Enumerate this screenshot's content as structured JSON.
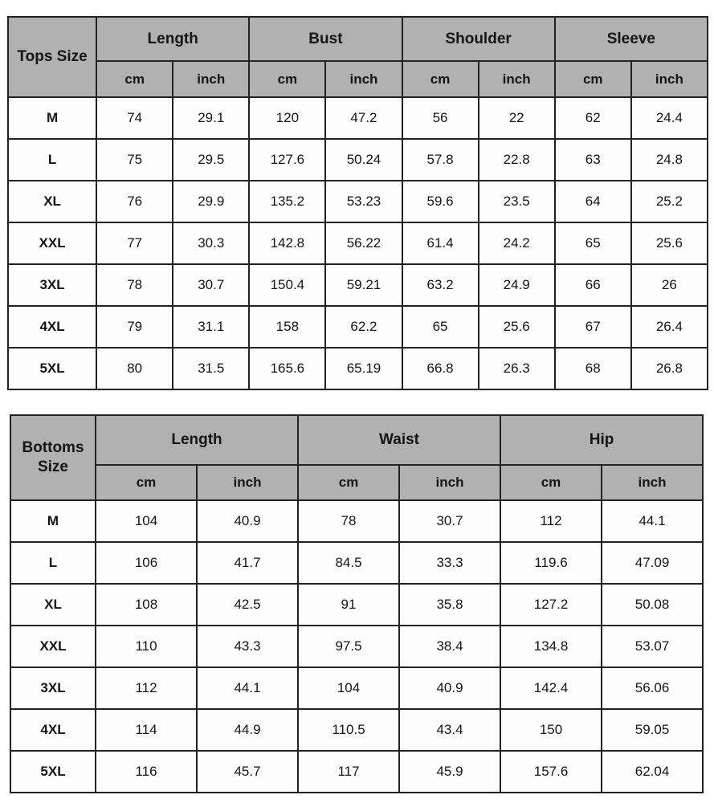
{
  "colors": {
    "header_bg": "#b1b1b1",
    "cell_bg": "#fdfdfd",
    "border": "#222222",
    "text": "#151515"
  },
  "tops": {
    "title": "Tops Size",
    "groups": [
      "Length",
      "Bust",
      "Shoulder",
      "Sleeve"
    ],
    "units": [
      "cm",
      "inch"
    ],
    "rows": [
      {
        "size": "M",
        "values": [
          "74",
          "29.1",
          "120",
          "47.2",
          "56",
          "22",
          "62",
          "24.4"
        ]
      },
      {
        "size": "L",
        "values": [
          "75",
          "29.5",
          "127.6",
          "50.24",
          "57.8",
          "22.8",
          "63",
          "24.8"
        ]
      },
      {
        "size": "XL",
        "values": [
          "76",
          "29.9",
          "135.2",
          "53.23",
          "59.6",
          "23.5",
          "64",
          "25.2"
        ]
      },
      {
        "size": "XXL",
        "values": [
          "77",
          "30.3",
          "142.8",
          "56.22",
          "61.4",
          "24.2",
          "65",
          "25.6"
        ]
      },
      {
        "size": "3XL",
        "values": [
          "78",
          "30.7",
          "150.4",
          "59.21",
          "63.2",
          "24.9",
          "66",
          "26"
        ]
      },
      {
        "size": "4XL",
        "values": [
          "79",
          "31.1",
          "158",
          "62.2",
          "65",
          "25.6",
          "67",
          "26.4"
        ]
      },
      {
        "size": "5XL",
        "values": [
          "80",
          "31.5",
          "165.6",
          "65.19",
          "66.8",
          "26.3",
          "68",
          "26.8"
        ]
      }
    ]
  },
  "bottoms": {
    "title": "Bottoms Size",
    "groups": [
      "Length",
      "Waist",
      "Hip"
    ],
    "units": [
      "cm",
      "inch"
    ],
    "rows": [
      {
        "size": "M",
        "values": [
          "104",
          "40.9",
          "78",
          "30.7",
          "112",
          "44.1"
        ]
      },
      {
        "size": "L",
        "values": [
          "106",
          "41.7",
          "84.5",
          "33.3",
          "119.6",
          "47.09"
        ]
      },
      {
        "size": "XL",
        "values": [
          "108",
          "42.5",
          "91",
          "35.8",
          "127.2",
          "50.08"
        ]
      },
      {
        "size": "XXL",
        "values": [
          "110",
          "43.3",
          "97.5",
          "38.4",
          "134.8",
          "53.07"
        ]
      },
      {
        "size": "3XL",
        "values": [
          "112",
          "44.1",
          "104",
          "40.9",
          "142.4",
          "56.06"
        ]
      },
      {
        "size": "4XL",
        "values": [
          "114",
          "44.9",
          "110.5",
          "43.4",
          "150",
          "59.05"
        ]
      },
      {
        "size": "5XL",
        "values": [
          "116",
          "45.7",
          "117",
          "45.9",
          "157.6",
          "62.04"
        ]
      }
    ]
  },
  "chart_data": [
    {
      "type": "table",
      "title": "Tops Size",
      "columns": [
        "Tops Size",
        "Length cm",
        "Length inch",
        "Bust cm",
        "Bust inch",
        "Shoulder cm",
        "Shoulder inch",
        "Sleeve cm",
        "Sleeve inch"
      ],
      "rows": [
        [
          "M",
          74,
          29.1,
          120,
          47.2,
          56,
          22,
          62,
          24.4
        ],
        [
          "L",
          75,
          29.5,
          127.6,
          50.24,
          57.8,
          22.8,
          63,
          24.8
        ],
        [
          "XL",
          76,
          29.9,
          135.2,
          53.23,
          59.6,
          23.5,
          64,
          25.2
        ],
        [
          "XXL",
          77,
          30.3,
          142.8,
          56.22,
          61.4,
          24.2,
          65,
          25.6
        ],
        [
          "3XL",
          78,
          30.7,
          150.4,
          59.21,
          63.2,
          24.9,
          66,
          26
        ],
        [
          "4XL",
          79,
          31.1,
          158,
          62.2,
          65,
          25.6,
          67,
          26.4
        ],
        [
          "5XL",
          80,
          31.5,
          165.6,
          65.19,
          66.8,
          26.3,
          68,
          26.8
        ]
      ]
    },
    {
      "type": "table",
      "title": "Bottoms Size",
      "columns": [
        "Bottoms Size",
        "Length cm",
        "Length inch",
        "Waist cm",
        "Waist inch",
        "Hip cm",
        "Hip inch"
      ],
      "rows": [
        [
          "M",
          104,
          40.9,
          78,
          30.7,
          112,
          44.1
        ],
        [
          "L",
          106,
          41.7,
          84.5,
          33.3,
          119.6,
          47.09
        ],
        [
          "XL",
          108,
          42.5,
          91,
          35.8,
          127.2,
          50.08
        ],
        [
          "XXL",
          110,
          43.3,
          97.5,
          38.4,
          134.8,
          53.07
        ],
        [
          "3XL",
          112,
          44.1,
          104,
          40.9,
          142.4,
          56.06
        ],
        [
          "4XL",
          114,
          44.9,
          110.5,
          43.4,
          150,
          59.05
        ],
        [
          "5XL",
          116,
          45.7,
          117,
          45.9,
          157.6,
          62.04
        ]
      ]
    }
  ]
}
